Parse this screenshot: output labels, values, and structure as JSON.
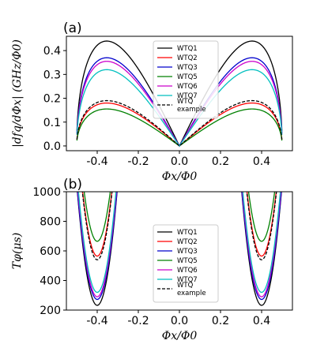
{
  "chart_data": [
    {
      "type": "line",
      "panel_label": "(a)",
      "xlabel": "Φx/Φ0",
      "ylabel": "|dfq/dΦx| (GHz/Φ0)",
      "xlim": [
        -0.55,
        0.55
      ],
      "ylim": [
        -0.02,
        0.46
      ],
      "x_ticks": [
        "-0.4",
        "-0.2",
        "0.0",
        "0.2",
        "0.4"
      ],
      "y_ticks": [
        "0.0",
        "0.1",
        "0.2",
        "0.3",
        "0.4"
      ],
      "x_tick_values": [
        -0.4,
        -0.2,
        0.0,
        0.2,
        0.4
      ],
      "y_tick_values": [
        0.0,
        0.1,
        0.2,
        0.3,
        0.4
      ],
      "legend_position": "top-center",
      "series": [
        {
          "name": "WTQ1",
          "color": "#000000",
          "dash": "solid",
          "peak": 0.44
        },
        {
          "name": "WTQ2",
          "color": "#ff0000",
          "dash": "solid",
          "peak": 0.18
        },
        {
          "name": "WTQ3",
          "color": "#0000cc",
          "dash": "solid",
          "peak": 0.37
        },
        {
          "name": "WTQ5",
          "color": "#008000",
          "dash": "solid",
          "peak": 0.155
        },
        {
          "name": "WTQ6",
          "color": "#cc00cc",
          "dash": "solid",
          "peak": 0.355
        },
        {
          "name": "WTQ7",
          "color": "#00bfbf",
          "dash": "solid",
          "peak": 0.32
        },
        {
          "name": "WTQ example",
          "legend_lines": [
            "WTQ",
            "example"
          ],
          "color": "#000000",
          "dash": "dashed",
          "peak": 0.19
        }
      ]
    },
    {
      "type": "line",
      "panel_label": "(b)",
      "xlabel": "Φx/Φ0",
      "ylabel": "Tφ(μs)",
      "xlim": [
        -0.55,
        0.55
      ],
      "ylim": [
        200,
        1000
      ],
      "x_ticks": [
        "-0.4",
        "-0.2",
        "0.0",
        "0.2",
        "0.4"
      ],
      "y_ticks": [
        "200",
        "400",
        "600",
        "800",
        "1000"
      ],
      "x_tick_values": [
        -0.4,
        -0.2,
        0.0,
        0.2,
        0.4
      ],
      "y_tick_values": [
        200,
        400,
        600,
        800,
        1000
      ],
      "legend_position": "bottom-center",
      "series": [
        {
          "name": "WTQ1",
          "color": "#000000",
          "dash": "solid",
          "min": 232,
          "width": 0.095
        },
        {
          "name": "WTQ2",
          "color": "#ff0000",
          "dash": "solid",
          "min": 565,
          "width": 0.145
        },
        {
          "name": "WTQ3",
          "color": "#0000cc",
          "dash": "solid",
          "min": 272,
          "width": 0.105
        },
        {
          "name": "WTQ5",
          "color": "#008000",
          "dash": "solid",
          "min": 665,
          "width": 0.16
        },
        {
          "name": "WTQ6",
          "color": "#cc00cc",
          "dash": "solid",
          "min": 290,
          "width": 0.107
        },
        {
          "name": "WTQ7",
          "color": "#00bfbf",
          "dash": "solid",
          "min": 320,
          "width": 0.112
        },
        {
          "name": "WTQ example",
          "legend_lines": [
            "WTQ",
            "example"
          ],
          "color": "#000000",
          "dash": "dashed",
          "min": 540,
          "width": 0.14
        }
      ]
    }
  ]
}
